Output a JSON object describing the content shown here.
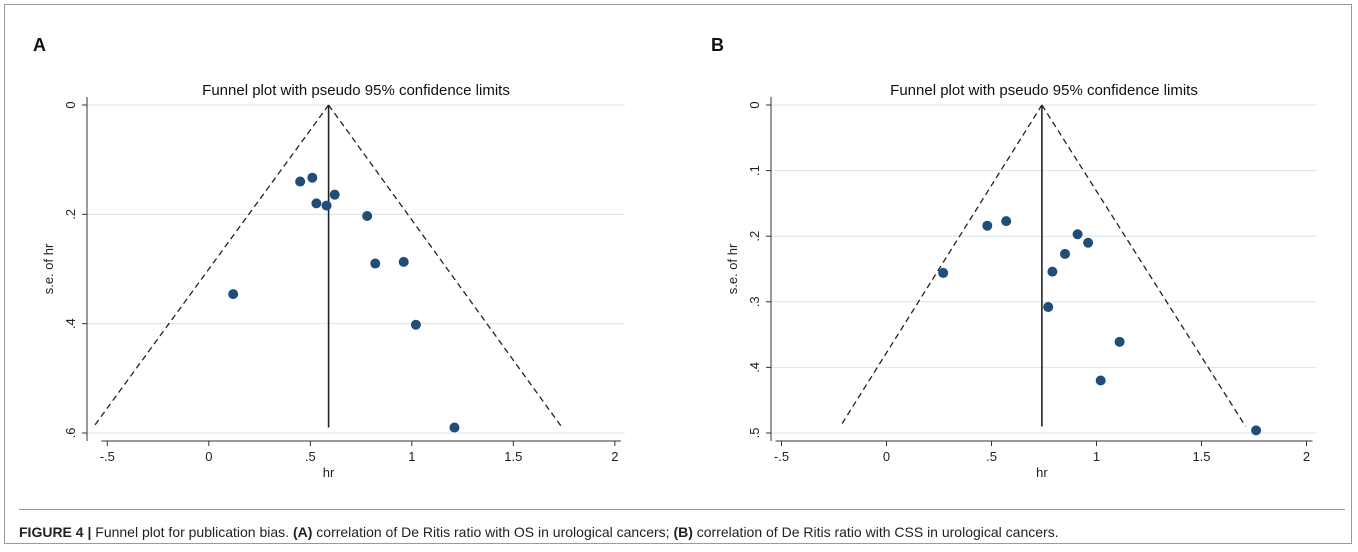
{
  "caption": {
    "figure_label": "FIGURE 4 |",
    "text_1": " Funnel plot for publication bias. ",
    "a_label": "(A)",
    "text_2": " correlation of De Ritis ratio with OS in urological cancers; ",
    "b_label": "(B)",
    "text_3": " correlation of De Ritis ratio with CSS in urological cancers."
  },
  "chart_data": [
    {
      "panel": "A",
      "type": "scatter",
      "title": "Funnel plot with pseudo 95% confidence limits",
      "xlabel": "hr",
      "ylabel": "s.e. of hr",
      "xlim": [
        -0.6,
        2.05
      ],
      "ylim": [
        0,
        0.6
      ],
      "y_reversed": true,
      "xticks": [
        -0.5,
        0,
        0.5,
        1,
        1.5,
        2
      ],
      "xtick_labels": [
        "-.5",
        "0",
        ".5",
        "1",
        "1.5",
        "2"
      ],
      "yticks": [
        0,
        0.2,
        0.4,
        0.6
      ],
      "ytick_labels": [
        "0",
        ".2",
        ".4",
        ".6"
      ],
      "grid": true,
      "pooled_estimate": 0.59,
      "funnel_apex": [
        0.59,
        0
      ],
      "funnel_base_left": [
        -0.57,
        0.59
      ],
      "funnel_base_right": [
        1.74,
        0.59
      ],
      "points": [
        {
          "x": 0.45,
          "y": 0.14
        },
        {
          "x": 0.51,
          "y": 0.133
        },
        {
          "x": 0.53,
          "y": 0.18
        },
        {
          "x": 0.58,
          "y": 0.184
        },
        {
          "x": 0.62,
          "y": 0.164
        },
        {
          "x": 0.78,
          "y": 0.203
        },
        {
          "x": 0.82,
          "y": 0.29
        },
        {
          "x": 0.96,
          "y": 0.287
        },
        {
          "x": 1.02,
          "y": 0.402
        },
        {
          "x": 0.12,
          "y": 0.346
        },
        {
          "x": 1.21,
          "y": 0.59
        }
      ]
    },
    {
      "panel": "B",
      "type": "scatter",
      "title": "Funnel plot with pseudo 95% confidence limits",
      "xlabel": "hr",
      "ylabel": "s.e. of hr",
      "xlim": [
        -0.55,
        2.05
      ],
      "ylim": [
        0,
        0.5
      ],
      "y_reversed": true,
      "xticks": [
        -0.5,
        0,
        0.5,
        1,
        1.5,
        2
      ],
      "xtick_labels": [
        "-.5",
        "0",
        ".5",
        "1",
        "1.5",
        "2"
      ],
      "yticks": [
        0,
        0.1,
        0.2,
        0.3,
        0.4,
        0.5
      ],
      "ytick_labels": [
        "0",
        ".1",
        ".2",
        ".3",
        ".4",
        ".5"
      ],
      "grid": true,
      "pooled_estimate": 0.74,
      "funnel_apex": [
        0.74,
        0
      ],
      "funnel_base_left": [
        -0.22,
        0.49
      ],
      "funnel_base_right": [
        1.71,
        0.49
      ],
      "points": [
        {
          "x": 0.27,
          "y": 0.256
        },
        {
          "x": 0.48,
          "y": 0.184
        },
        {
          "x": 0.57,
          "y": 0.177
        },
        {
          "x": 0.91,
          "y": 0.197
        },
        {
          "x": 0.96,
          "y": 0.21
        },
        {
          "x": 0.85,
          "y": 0.227
        },
        {
          "x": 0.79,
          "y": 0.254
        },
        {
          "x": 0.77,
          "y": 0.308
        },
        {
          "x": 1.11,
          "y": 0.361
        },
        {
          "x": 1.02,
          "y": 0.42
        },
        {
          "x": 1.76,
          "y": 0.496
        }
      ]
    }
  ],
  "colors": {
    "point": "#1f4e79",
    "grid": "#d8e6ea",
    "axis": "#333333",
    "funnel": "#222222"
  }
}
